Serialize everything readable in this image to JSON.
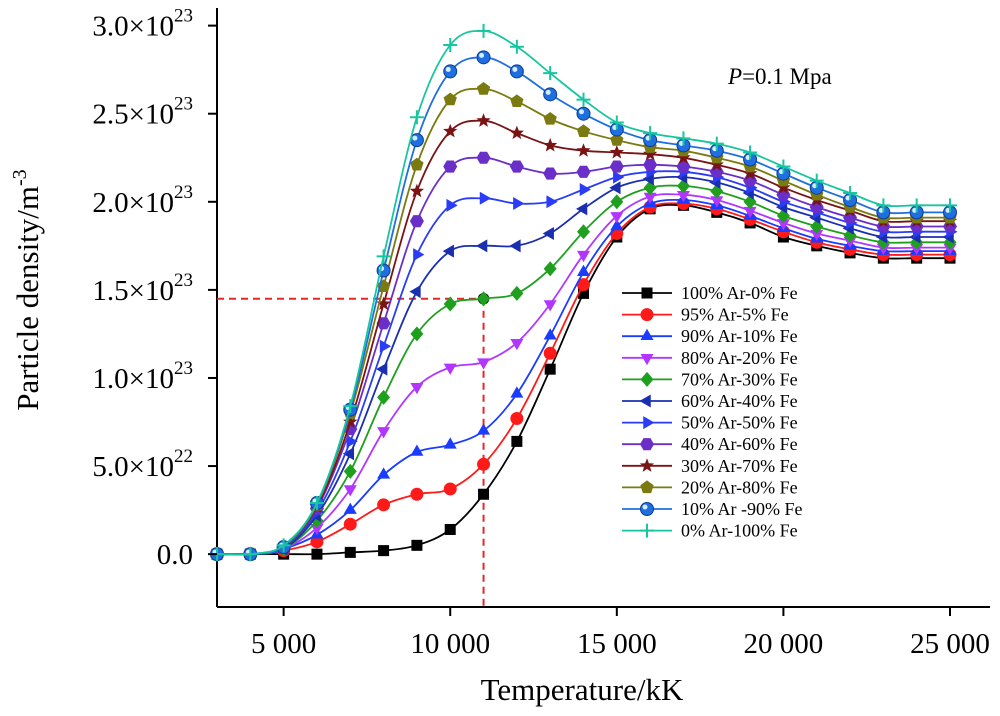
{
  "chart_data": {
    "type": "line",
    "title": "",
    "annotation": {
      "italic": "P",
      "rest": "=0.1 Mpa"
    },
    "xlabel": {
      "main": "Temperature/",
      "unit": "kK"
    },
    "ylabel": {
      "main": "Particle density/m",
      "sup": "-3"
    },
    "xlim": [
      3000,
      25000
    ],
    "ylim": [
      -3e+22,
      3.1e+23
    ],
    "xticks": [
      {
        "value": 5000,
        "label": "5 000"
      },
      {
        "value": 10000,
        "label": "10 000"
      },
      {
        "value": 15000,
        "label": "15 000"
      },
      {
        "value": 20000,
        "label": "20 000"
      },
      {
        "value": 25000,
        "label": "25 000"
      }
    ],
    "yticks": [
      {
        "value": 0,
        "mant": "0.0",
        "exp": ""
      },
      {
        "value": 5e+22,
        "mant": "5.0×10",
        "exp": "22"
      },
      {
        "value": 1e+23,
        "mant": "1.0×10",
        "exp": "23"
      },
      {
        "value": 1.5e+23,
        "mant": "1.5×10",
        "exp": "23"
      },
      {
        "value": 2e+23,
        "mant": "2.0×10",
        "exp": "23"
      },
      {
        "value": 2.5e+23,
        "mant": "2.5×10",
        "exp": "23"
      },
      {
        "value": 3e+23,
        "mant": "3.0×10",
        "exp": "23"
      }
    ],
    "reference_lines": {
      "x": 11000,
      "y": 1.45e+23,
      "color": "#e8262a"
    },
    "x": [
      3000,
      4000,
      5000,
      6000,
      7000,
      8000,
      9000,
      10000,
      11000,
      12000,
      13000,
      14000,
      15000,
      16000,
      17000,
      18000,
      19000,
      20000,
      21000,
      22000,
      23000,
      24000,
      25000
    ],
    "series": [
      {
        "name": "100% Ar-0% Fe",
        "color": "#000000",
        "marker": "square",
        "values": [
          0,
          0,
          0,
          0,
          1e+21,
          2e+21,
          5e+21,
          1.4e+22,
          3.4e+22,
          6.4e+22,
          1.05e+23,
          1.48e+23,
          1.8e+23,
          1.96e+23,
          1.98e+23,
          1.94e+23,
          1.88e+23,
          1.8e+23,
          1.75e+23,
          1.71e+23,
          1.68e+23,
          1.68e+23,
          1.68e+23
        ]
      },
      {
        "name": "95% Ar-5% Fe",
        "color": "#ff1a1a",
        "marker": "circle",
        "values": [
          0,
          0,
          2e+21,
          7e+21,
          1.7e+22,
          2.8e+22,
          3.4e+22,
          3.7e+22,
          5.1e+22,
          7.7e+22,
          1.14e+23,
          1.53e+23,
          1.82e+23,
          1.97e+23,
          1.99e+23,
          1.96e+23,
          1.9e+23,
          1.83e+23,
          1.77e+23,
          1.73e+23,
          1.7e+23,
          1.7e+23,
          1.7e+23
        ]
      },
      {
        "name": "90% Ar-10% Fe",
        "color": "#1a3cff",
        "marker": "triangle-up",
        "values": [
          0,
          0,
          3e+21,
          1.1e+22,
          2.5e+22,
          4.5e+22,
          5.8e+22,
          6.2e+22,
          7e+22,
          9.1e+22,
          1.24e+23,
          1.6e+23,
          1.86e+23,
          1.99e+23,
          2.01e+23,
          1.98e+23,
          1.92e+23,
          1.85e+23,
          1.79e+23,
          1.75e+23,
          1.72e+23,
          1.72e+23,
          1.72e+23
        ]
      },
      {
        "name": "80% Ar-20% Fe",
        "color": "#b236ff",
        "marker": "triangle-down",
        "values": [
          0,
          0,
          3e+21,
          1.5e+22,
          3.7e+22,
          7e+22,
          9.5e+22,
          1.06e+23,
          1.09e+23,
          1.2e+23,
          1.42e+23,
          1.7e+23,
          1.92e+23,
          2.03e+23,
          2.04e+23,
          2.01e+23,
          1.95e+23,
          1.88e+23,
          1.82e+23,
          1.78e+23,
          1.74e+23,
          1.74e+23,
          1.74e+23
        ]
      },
      {
        "name": "70% Ar-30% Fe",
        "color": "#1ea01e",
        "marker": "diamond",
        "values": [
          0,
          0,
          3e+21,
          1.9e+22,
          4.7e+22,
          8.9e+22,
          1.25e+23,
          1.42e+23,
          1.45e+23,
          1.48e+23,
          1.62e+23,
          1.83e+23,
          2e+23,
          2.08e+23,
          2.09e+23,
          2.06e+23,
          2e+23,
          1.92e+23,
          1.86e+23,
          1.81e+23,
          1.77e+23,
          1.77e+23,
          1.77e+23
        ]
      },
      {
        "name": "60% Ar-40% Fe",
        "color": "#1a2fb0",
        "marker": "triangle-left",
        "values": [
          0,
          0,
          3e+21,
          2.2e+22,
          5.7e+22,
          1.05e+23,
          1.49e+23,
          1.72e+23,
          1.75e+23,
          1.75e+23,
          1.82e+23,
          1.96e+23,
          2.08e+23,
          2.13e+23,
          2.14e+23,
          2.11e+23,
          2.05e+23,
          1.97e+23,
          1.91e+23,
          1.85e+23,
          1.8e+23,
          1.8e+23,
          1.8e+23
        ]
      },
      {
        "name": "50% Ar-50% Fe",
        "color": "#2a3cf5",
        "marker": "triangle-right",
        "values": [
          0,
          0,
          4e+21,
          2.4e+22,
          6.4e+22,
          1.18e+23,
          1.7e+23,
          1.98e+23,
          2.02e+23,
          1.99e+23,
          2e+23,
          2.07e+23,
          2.14e+23,
          2.17e+23,
          2.17e+23,
          2.14e+23,
          2.08e+23,
          2e+23,
          1.94e+23,
          1.88e+23,
          1.83e+23,
          1.83e+23,
          1.83e+23
        ]
      },
      {
        "name": "40% Ar-60% Fe",
        "color": "#6a2fc8",
        "marker": "hexagon",
        "values": [
          0,
          0,
          4e+21,
          2.6e+22,
          7.1e+22,
          1.31e+23,
          1.89e+23,
          2.2e+23,
          2.25e+23,
          2.2e+23,
          2.16e+23,
          2.17e+23,
          2.2e+23,
          2.21e+23,
          2.2e+23,
          2.17e+23,
          2.12e+23,
          2.04e+23,
          1.97e+23,
          1.91e+23,
          1.86e+23,
          1.86e+23,
          1.86e+23
        ]
      },
      {
        "name": "30% Ar-70% Fe",
        "color": "#7a1414",
        "marker": "star",
        "values": [
          0,
          0,
          4e+21,
          2.7e+22,
          7.5e+22,
          1.42e+23,
          2.06e+23,
          2.4e+23,
          2.46e+23,
          2.39e+23,
          2.32e+23,
          2.29e+23,
          2.28e+23,
          2.27e+23,
          2.25e+23,
          2.21e+23,
          2.16e+23,
          2.08e+23,
          2.01e+23,
          1.95e+23,
          1.89e+23,
          1.89e+23,
          1.89e+23
        ]
      },
      {
        "name": "20% Ar-80% Fe",
        "color": "#7a7a10",
        "marker": "pentagon",
        "values": [
          0,
          0,
          4e+21,
          2.8e+22,
          8e+22,
          1.52e+23,
          2.21e+23,
          2.58e+23,
          2.64e+23,
          2.57e+23,
          2.47e+23,
          2.4e+23,
          2.35e+23,
          2.31e+23,
          2.29e+23,
          2.25e+23,
          2.2e+23,
          2.12e+23,
          2.04e+23,
          1.97e+23,
          1.91e+23,
          1.91e+23,
          1.91e+23
        ]
      },
      {
        "name": "10% Ar -90% Fe",
        "color": "#1f6fe0",
        "marker": "ball",
        "values": [
          0,
          0,
          4e+21,
          2.9e+22,
          8.2e+22,
          1.61e+23,
          2.35e+23,
          2.74e+23,
          2.82e+23,
          2.74e+23,
          2.61e+23,
          2.5e+23,
          2.41e+23,
          2.35e+23,
          2.32e+23,
          2.29e+23,
          2.24e+23,
          2.16e+23,
          2.08e+23,
          2.01e+23,
          1.94e+23,
          1.94e+23,
          1.94e+23
        ]
      },
      {
        "name": "0% Ar-100% Fe",
        "color": "#17c6a0",
        "marker": "plus",
        "values": [
          0,
          0,
          5e+21,
          2.9e+22,
          8.4e+22,
          1.69e+23,
          2.48e+23,
          2.89e+23,
          2.97e+23,
          2.88e+23,
          2.73e+23,
          2.58e+23,
          2.45e+23,
          2.39e+23,
          2.36e+23,
          2.33e+23,
          2.28e+23,
          2.2e+23,
          2.12e+23,
          2.05e+23,
          1.98e+23,
          1.98e+23,
          1.98e+23
        ]
      }
    ]
  }
}
